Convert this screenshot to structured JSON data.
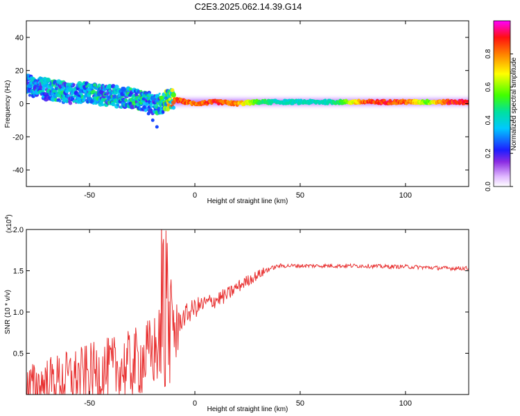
{
  "title": "C2E3.2025.062.14.39.G14",
  "chart_data": [
    {
      "type": "heatmap",
      "xlabel": "Height of straight line (km)",
      "ylabel": "Frequency (Hz)",
      "xlim": [
        -80,
        130
      ],
      "ylim": [
        -50,
        50
      ],
      "xticks": [
        -50,
        0,
        50,
        100
      ],
      "yticks": [
        -40,
        -20,
        0,
        20,
        40
      ],
      "colorbar": {
        "label": "Normalized spectral amplitude",
        "range": [
          0,
          1
        ],
        "ticks": [
          0.0,
          0.2,
          0.4,
          0.6,
          0.8
        ]
      },
      "ridge": {
        "x": [
          -78,
          -72,
          -66,
          -60,
          -54,
          -48,
          -42,
          -36,
          -30,
          -24,
          -20,
          -16,
          -12,
          -8,
          -4,
          0,
          10,
          20,
          30,
          40,
          50,
          60,
          70,
          80,
          90,
          100,
          110,
          120,
          130
        ],
        "freq": [
          11,
          9,
          8,
          6,
          7,
          6,
          5,
          4,
          3,
          2,
          0,
          0,
          3,
          2,
          1,
          0,
          1,
          0,
          1,
          1,
          1,
          1,
          1,
          1,
          1,
          1,
          1,
          1,
          1
        ],
        "amplitude": [
          0.45,
          0.45,
          0.5,
          0.45,
          0.45,
          0.5,
          0.5,
          0.45,
          0.5,
          0.5,
          0.45,
          0.5,
          0.8,
          0.95,
          0.9,
          0.85,
          0.95,
          0.85,
          0.55,
          0.45,
          0.45,
          0.45,
          0.55,
          0.9,
          0.95,
          0.9,
          0.6,
          0.95,
          0.95
        ]
      },
      "dip": {
        "x": [
          -24,
          -22,
          -20,
          -18
        ],
        "freq": [
          -2,
          -6,
          -10,
          -14
        ]
      }
    },
    {
      "type": "line",
      "xlabel": "Height of straight line (km)",
      "ylabel": "SNR (10 * v/v)",
      "scale_label": "(x10",
      "scale_exp": "4",
      "scale_close": ")",
      "xlim": [
        -80,
        130
      ],
      "ylim": [
        0,
        2.0
      ],
      "xticks": [
        -50,
        0,
        50,
        100
      ],
      "yticks": [
        0.5,
        1.0,
        1.5,
        2.0
      ],
      "series": [
        {
          "name": "SNR",
          "color": "#e83030",
          "x": [
            -80,
            -70,
            -60,
            -50,
            -40,
            -30,
            -20,
            -15,
            -10,
            -5,
            0,
            5,
            10,
            15,
            20,
            25,
            30,
            35,
            40,
            50,
            60,
            70,
            80,
            90,
            100,
            110,
            120,
            130
          ],
          "y": [
            0.08,
            0.15,
            0.2,
            0.25,
            0.3,
            0.35,
            0.5,
            0.65,
            0.8,
            0.95,
            1.05,
            1.1,
            1.15,
            1.2,
            1.3,
            1.38,
            1.45,
            1.52,
            1.56,
            1.56,
            1.56,
            1.56,
            1.56,
            1.55,
            1.55,
            1.54,
            1.53,
            1.53
          ]
        }
      ]
    }
  ]
}
